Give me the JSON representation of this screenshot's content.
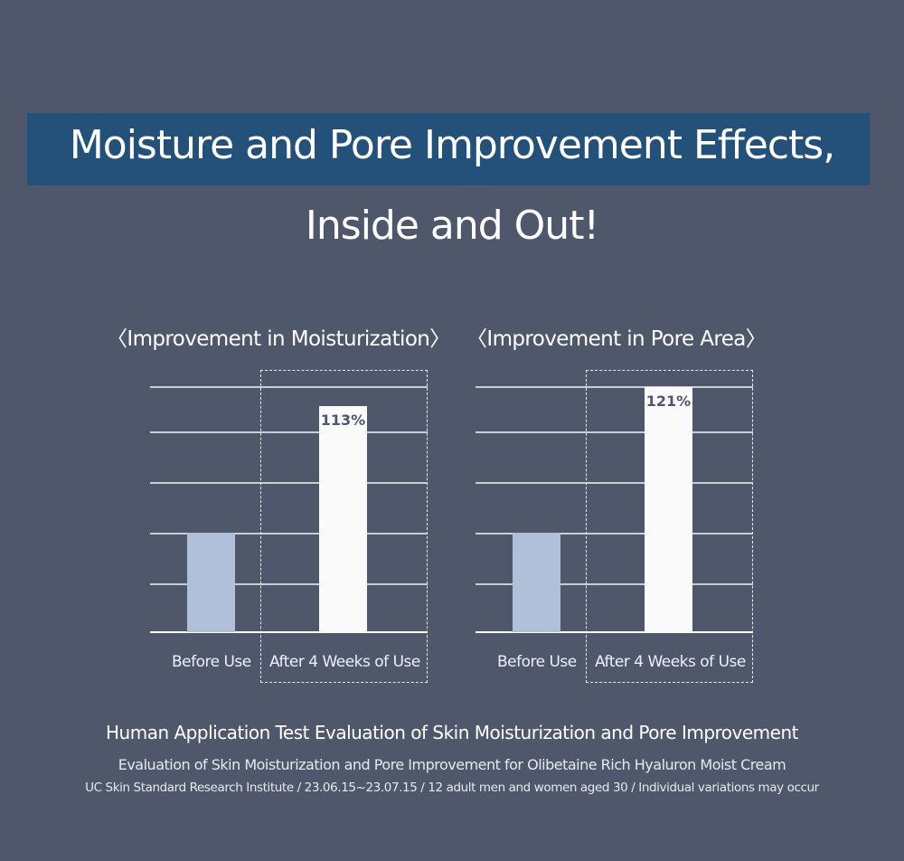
{
  "header": {
    "title_line1": "Moisture and Pore Improvement Effects,",
    "title_line2": "Inside and Out!"
  },
  "colors": {
    "background": "#4f586b",
    "title_band": "#245179",
    "before_bar": "#b0c0d8",
    "after_bar": "#fafafa"
  },
  "chart_data": [
    {
      "type": "bar",
      "title": "〈Improvement in Moisturization〉",
      "categories": [
        "Before Use",
        "After 4 Weeks of Use"
      ],
      "values": [
        100,
        113
      ],
      "data_labels": [
        "",
        "113%"
      ],
      "grid": true
    },
    {
      "type": "bar",
      "title": "〈Improvement in Pore Area〉",
      "categories": [
        "Before Use",
        "After 4 Weeks of Use"
      ],
      "values": [
        100,
        121
      ],
      "data_labels": [
        "",
        "121%"
      ],
      "grid": true
    }
  ],
  "footer": {
    "line1": "Human Application Test Evaluation of Skin Moisturization and Pore Improvement",
    "line2": "Evaluation of Skin Moisturization and Pore Improvement for Olibetaine Rich Hyaluron Moist Cream",
    "line3": "UC Skin Standard Research Institute / 23.06.15~23.07.15 / 12 adult men and women aged 30 / Individual variations may occur"
  }
}
